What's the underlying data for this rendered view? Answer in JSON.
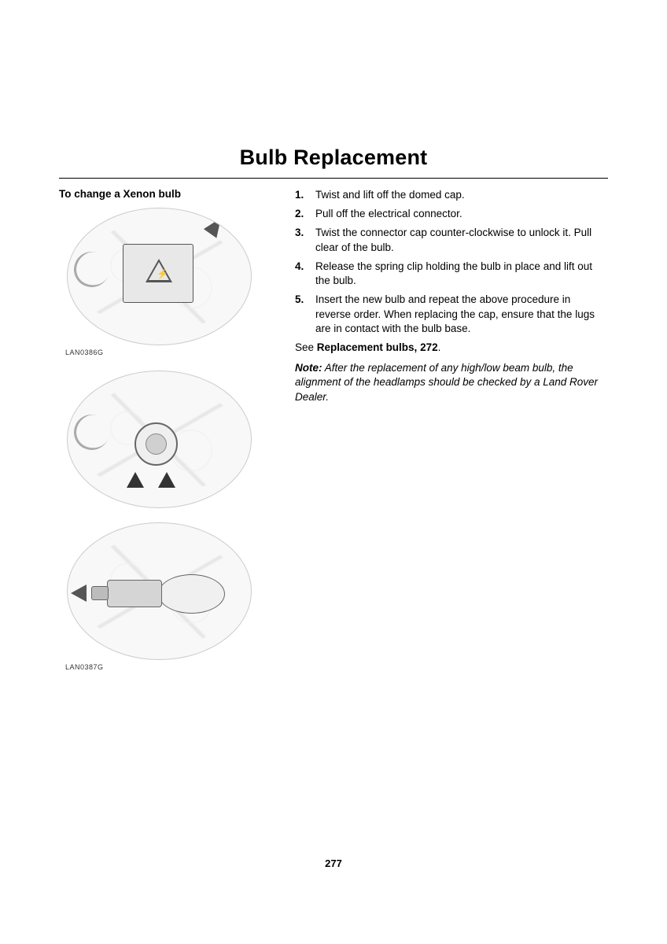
{
  "title": "Bulb Replacement",
  "left": {
    "subheading": "To change a Xenon bulb",
    "figure1_caption": "LAN0386G",
    "figure2_caption": "LAN0387G"
  },
  "steps": [
    "Twist and lift off the domed cap.",
    "Pull off the electrical connector.",
    "Twist the connector cap counter-clockwise to unlock it. Pull clear of the bulb.",
    "Release the spring clip holding the bulb in place and lift out the bulb.",
    "Insert the new bulb and repeat the above procedure in reverse order. When replacing the cap, ensure that the lugs are in contact with the bulb base."
  ],
  "see": {
    "prefix": "See ",
    "bold": "Replacement bulbs, 272",
    "suffix": "."
  },
  "note": {
    "label": "Note:",
    "text": " After the replacement of any high/low beam bulb, the alignment of the headlamps should be checked by a Land Rover Dealer."
  },
  "page_number": "277"
}
